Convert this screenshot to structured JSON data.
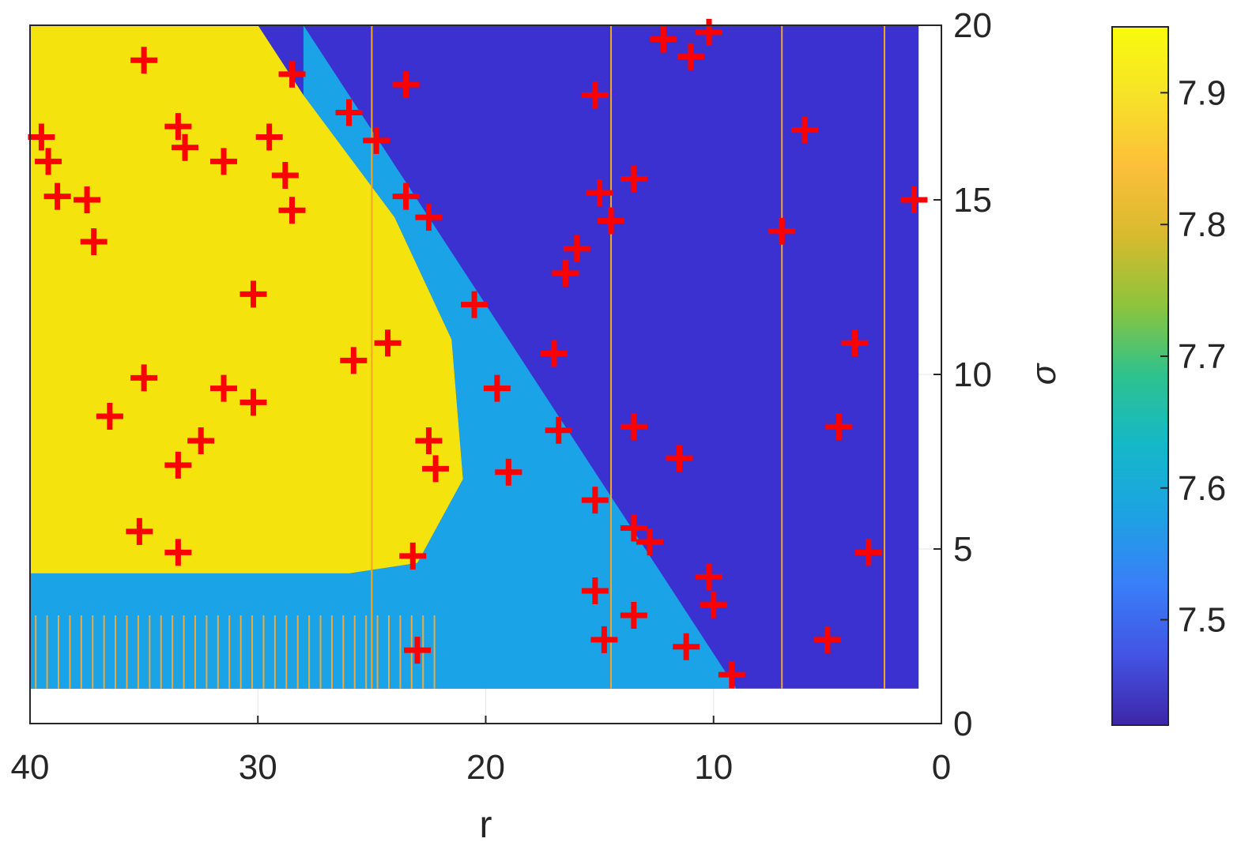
{
  "chart_data": {
    "type": "heatmap",
    "title": "",
    "xlabel": "r",
    "ylabel": "σ",
    "xlim": [
      40,
      0
    ],
    "x_reversed": true,
    "ylim": [
      0,
      20
    ],
    "y_axis_side": "right",
    "data_extent": {
      "r": [
        40,
        1
      ],
      "sigma": [
        1,
        20
      ]
    },
    "xticks": [
      40,
      30,
      20,
      10,
      0
    ],
    "xtick_labels": [
      "40",
      "30",
      "20",
      "10",
      "0"
    ],
    "yticks": [
      0,
      5,
      10,
      15,
      20
    ],
    "ytick_labels": [
      "0",
      "5",
      "10",
      "15",
      "20"
    ],
    "colorbar": {
      "range": [
        7.42,
        7.95
      ],
      "ticks": [
        7.5,
        7.6,
        7.7,
        7.8,
        7.9
      ],
      "tick_labels": [
        "7.5",
        "7.6",
        "7.7",
        "7.8",
        "7.9"
      ],
      "colormap": "parula",
      "stops": [
        "#3e26a8",
        "#4354e4",
        "#3a7ef8",
        "#1ea2e3",
        "#14b8c9",
        "#2dc28f",
        "#8cc43c",
        "#d7ba2e",
        "#fcbf3a",
        "#f6e228",
        "#f9fb0e"
      ]
    },
    "regions": [
      {
        "name": "high",
        "value": 7.94,
        "color": "#f5e30e",
        "boundary": [
          [
            40,
            4.3
          ],
          [
            26,
            4.3
          ],
          [
            23,
            4.6
          ],
          [
            21,
            7
          ],
          [
            21.5,
            11
          ],
          [
            24,
            14.5
          ],
          [
            28,
            18
          ],
          [
            30,
            20
          ],
          [
            40,
            20
          ]
        ]
      },
      {
        "name": "transition",
        "value": 7.55,
        "color": "#1aa3e6",
        "boundary": [
          [
            40,
            1
          ],
          [
            40,
            4.3
          ],
          [
            26,
            4.3
          ],
          [
            23,
            4.6
          ],
          [
            21,
            7
          ],
          [
            21.5,
            11
          ],
          [
            24,
            14.5
          ],
          [
            28,
            18
          ],
          [
            28,
            20
          ],
          [
            20,
            12
          ],
          [
            14,
            6
          ],
          [
            9,
            1
          ]
        ]
      },
      {
        "name": "low",
        "value": 7.46,
        "color": "#3b31d0"
      }
    ],
    "stripes_low_sigma": {
      "sigma_range": [
        1,
        3.1
      ],
      "r_range": [
        40,
        22
      ],
      "spacing": 0.5
    },
    "orange_lines_r": [
      25,
      14.5,
      7,
      2.5
    ],
    "markers": {
      "symbol": "+",
      "color": "#ff0000",
      "points": [
        [
          35,
          19
        ],
        [
          28.5,
          18.6
        ],
        [
          23.5,
          18.3
        ],
        [
          26,
          17.5
        ],
        [
          39.5,
          16.8
        ],
        [
          39.2,
          16.1
        ],
        [
          33.5,
          17.1
        ],
        [
          33.2,
          16.5
        ],
        [
          29.5,
          16.8
        ],
        [
          24.8,
          16.7
        ],
        [
          31.5,
          16.1
        ],
        [
          28.8,
          15.7
        ],
        [
          38.8,
          15.1
        ],
        [
          37.5,
          15
        ],
        [
          28.5,
          14.7
        ],
        [
          23.5,
          15.1
        ],
        [
          22.5,
          14.5
        ],
        [
          37.2,
          13.8
        ],
        [
          30.2,
          12.3
        ],
        [
          20.5,
          12
        ],
        [
          35,
          9.9
        ],
        [
          31.5,
          9.6
        ],
        [
          30.2,
          9.2
        ],
        [
          25.8,
          10.4
        ],
        [
          24.3,
          10.9
        ],
        [
          19.5,
          9.6
        ],
        [
          17,
          10.6
        ],
        [
          36.5,
          8.8
        ],
        [
          32.5,
          8.1
        ],
        [
          33.5,
          7.4
        ],
        [
          22.5,
          8.1
        ],
        [
          22.2,
          7.3
        ],
        [
          19,
          7.2
        ],
        [
          35.2,
          5.5
        ],
        [
          33.5,
          4.9
        ],
        [
          23.2,
          4.8
        ],
        [
          12.2,
          19.6
        ],
        [
          11,
          19.1
        ],
        [
          10.2,
          19.8
        ],
        [
          15.2,
          18
        ],
        [
          15,
          15.2
        ],
        [
          13.5,
          15.6
        ],
        [
          6,
          17
        ],
        [
          1.2,
          15
        ],
        [
          14.5,
          14.4
        ],
        [
          7,
          14.1
        ],
        [
          16,
          13.6
        ],
        [
          16.5,
          12.9
        ],
        [
          3.8,
          10.9
        ],
        [
          16.8,
          8.4
        ],
        [
          13.5,
          8.5
        ],
        [
          4.5,
          8.5
        ],
        [
          11.5,
          7.6
        ],
        [
          15.2,
          6.4
        ],
        [
          13.5,
          5.6
        ],
        [
          12.8,
          5.2
        ],
        [
          3.2,
          4.9
        ],
        [
          15.2,
          3.8
        ],
        [
          10,
          3.4
        ],
        [
          10.2,
          4.2
        ],
        [
          13.5,
          3.1
        ],
        [
          5,
          2.4
        ],
        [
          14.8,
          2.4
        ],
        [
          11.2,
          2.2
        ],
        [
          23,
          2.1
        ],
        [
          9.2,
          1.4
        ]
      ]
    }
  }
}
